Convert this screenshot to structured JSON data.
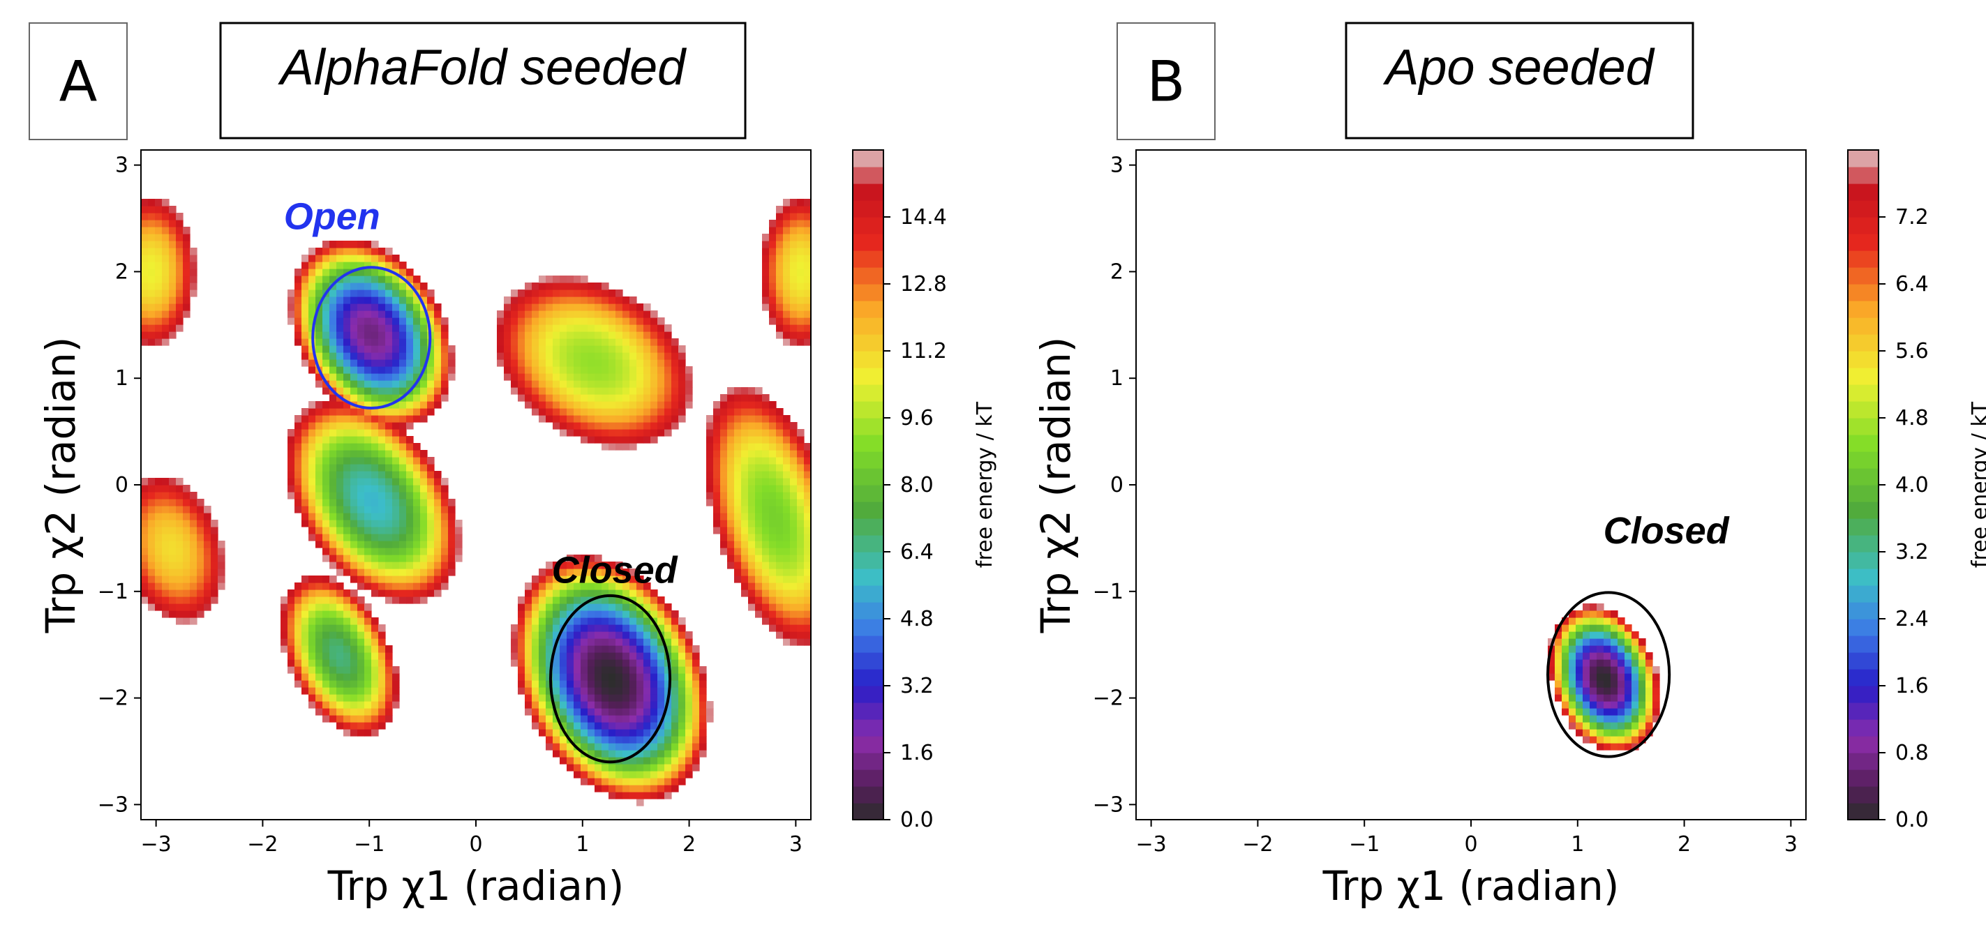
{
  "chart_data": [
    {
      "type": "heatmap",
      "panel_label": "A",
      "title": "AlphaFold seeded",
      "xlabel": "Trp χ1 (radian)",
      "ylabel": "Trp χ2 (radian)",
      "xlim": [
        -3.14159,
        3.14159
      ],
      "ylim": [
        -3.14159,
        3.14159
      ],
      "xticks": [
        -3,
        -2,
        -1,
        0,
        1,
        2,
        3
      ],
      "yticks": [
        -3,
        -2,
        -1,
        0,
        1,
        2,
        3
      ],
      "x_tick_labels": [
        "−3",
        "−2",
        "−1",
        "0",
        "1",
        "2",
        "3"
      ],
      "y_tick_labels": [
        "−3",
        "−2",
        "−1",
        "0",
        "1",
        "2",
        "3"
      ],
      "colorbar": {
        "label": "free energy / kT",
        "range": [
          0.0,
          16.0
        ],
        "ticks": [
          0.0,
          1.6,
          3.2,
          4.8,
          6.4,
          8.0,
          9.6,
          11.2,
          12.8,
          14.4
        ],
        "tick_labels": [
          "0.0",
          "1.6",
          "3.2",
          "4.8",
          "6.4",
          "8.0",
          "9.6",
          "11.2",
          "12.8",
          "14.4"
        ]
      },
      "basins": [
        {
          "x": 1.27,
          "y": -1.82,
          "min_energy": 0.0,
          "sx": 0.38,
          "sy": 0.55,
          "rot": 0.45
        },
        {
          "x": -0.98,
          "y": 1.42,
          "min_energy": 1.3,
          "sx": 0.32,
          "sy": 0.45,
          "rot": 0.55
        },
        {
          "x": -0.97,
          "y": -0.15,
          "min_energy": 5.6,
          "sx": 0.38,
          "sy": 0.6,
          "rot": 0.6
        },
        {
          "x": -1.28,
          "y": -1.6,
          "min_energy": 6.6,
          "sx": 0.28,
          "sy": 0.48,
          "rot": 0.45
        },
        {
          "x": 2.8,
          "y": -0.3,
          "min_energy": 8.6,
          "sx": 0.38,
          "sy": 0.85,
          "rot": 0.3
        },
        {
          "x": 1.1,
          "y": 1.15,
          "min_energy": 9.2,
          "sx": 0.7,
          "sy": 0.5,
          "rot": -0.55
        },
        {
          "x": -2.85,
          "y": -0.6,
          "min_energy": 11.0,
          "sx": 0.38,
          "sy": 0.58,
          "rot": 0.3
        },
        {
          "x": -3.05,
          "y": 2.0,
          "min_energy": 10.5,
          "sx": 0.33,
          "sy": 0.55,
          "rot": 0.0
        },
        {
          "x": 3.05,
          "y": 2.0,
          "min_energy": 10.5,
          "sx": 0.3,
          "sy": 0.55,
          "rot": 0.0
        }
      ],
      "annotations": [
        {
          "text": "Open",
          "x": -1.35,
          "y": 2.4,
          "color": "#2233ee"
        },
        {
          "text": "Closed",
          "x": 1.3,
          "y": -0.92,
          "color": "#000000"
        }
      ],
      "ellipses": [
        {
          "cx": -0.98,
          "cy": 1.38,
          "rx": 0.55,
          "ry": 0.66,
          "color": "#2233ee"
        },
        {
          "cx": 1.26,
          "cy": -1.82,
          "rx": 0.56,
          "ry": 0.78,
          "color": "#000000"
        }
      ]
    },
    {
      "type": "heatmap",
      "panel_label": "B",
      "title": "Apo seeded",
      "xlabel": "Trp χ1 (radian)",
      "ylabel": "Trp χ2 (radian)",
      "xlim": [
        -3.14159,
        3.14159
      ],
      "ylim": [
        -3.14159,
        3.14159
      ],
      "xticks": [
        -3,
        -2,
        -1,
        0,
        1,
        2,
        3
      ],
      "yticks": [
        -3,
        -2,
        -1,
        0,
        1,
        2,
        3
      ],
      "x_tick_labels": [
        "−3",
        "−2",
        "−1",
        "0",
        "1",
        "2",
        "3"
      ],
      "y_tick_labels": [
        "−3",
        "−2",
        "−1",
        "0",
        "1",
        "2",
        "3"
      ],
      "colorbar": {
        "label": "free energy / kT",
        "range": [
          0.0,
          8.0
        ],
        "ticks": [
          0.0,
          0.8,
          1.6,
          2.4,
          3.2,
          4.0,
          4.8,
          5.6,
          6.4,
          7.2
        ],
        "tick_labels": [
          "0.0",
          "0.8",
          "1.6",
          "2.4",
          "3.2",
          "4.0",
          "4.8",
          "5.6",
          "6.4",
          "7.2"
        ]
      },
      "basins": [
        {
          "x": 1.25,
          "y": -1.82,
          "min_energy": 0.0,
          "sx": 0.22,
          "sy": 0.32,
          "rot": 0.35
        }
      ],
      "annotations": [
        {
          "text": "Closed",
          "x": 1.83,
          "y": -0.55,
          "color": "#000000"
        }
      ],
      "ellipses": [
        {
          "cx": 1.29,
          "cy": -1.78,
          "rx": 0.57,
          "ry": 0.77,
          "color": "#000000"
        }
      ]
    }
  ]
}
